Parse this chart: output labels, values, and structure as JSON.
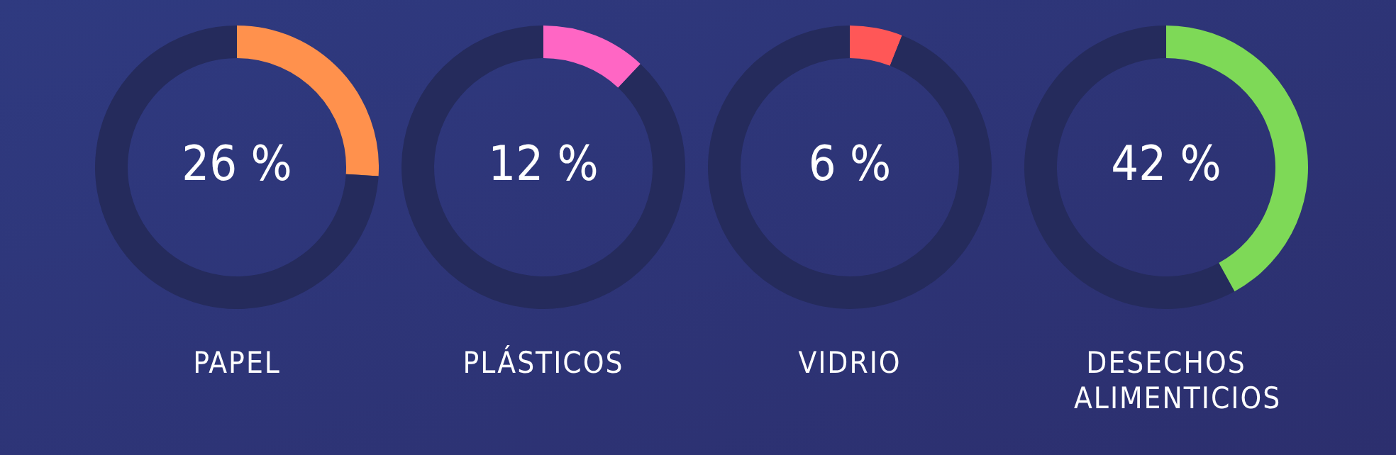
{
  "chart_data": [
    {
      "type": "donut",
      "title": "PAPEL",
      "categories": [
        null,
        null
      ],
      "values": [
        26,
        74
      ],
      "colors": [
        "#ff914d",
        "#252b5c"
      ],
      "value_labels": [
        "26 %",
        null
      ]
    },
    {
      "type": "donut",
      "title": "PLÁSTICOS",
      "categories": [
        null,
        null
      ],
      "values": [
        12,
        88
      ],
      "colors": [
        "#ff66c4",
        "#252b5c"
      ],
      "value_labels": [
        "12 %",
        null
      ]
    },
    {
      "type": "donut",
      "title": "VIDRIO",
      "categories": [
        null,
        null
      ],
      "values": [
        6,
        94
      ],
      "colors": [
        "#ff5757",
        "#252b5c"
      ],
      "value_labels": [
        "6 %",
        null
      ]
    },
    {
      "type": "donut",
      "title": "DESECHOS ALIMENTICIOS",
      "categories": [
        null,
        null
      ],
      "values": [
        42,
        58
      ],
      "colors": [
        "#7ed957",
        "#252b5c"
      ],
      "value_labels": [
        "42 %",
        null
      ]
    }
  ]
}
